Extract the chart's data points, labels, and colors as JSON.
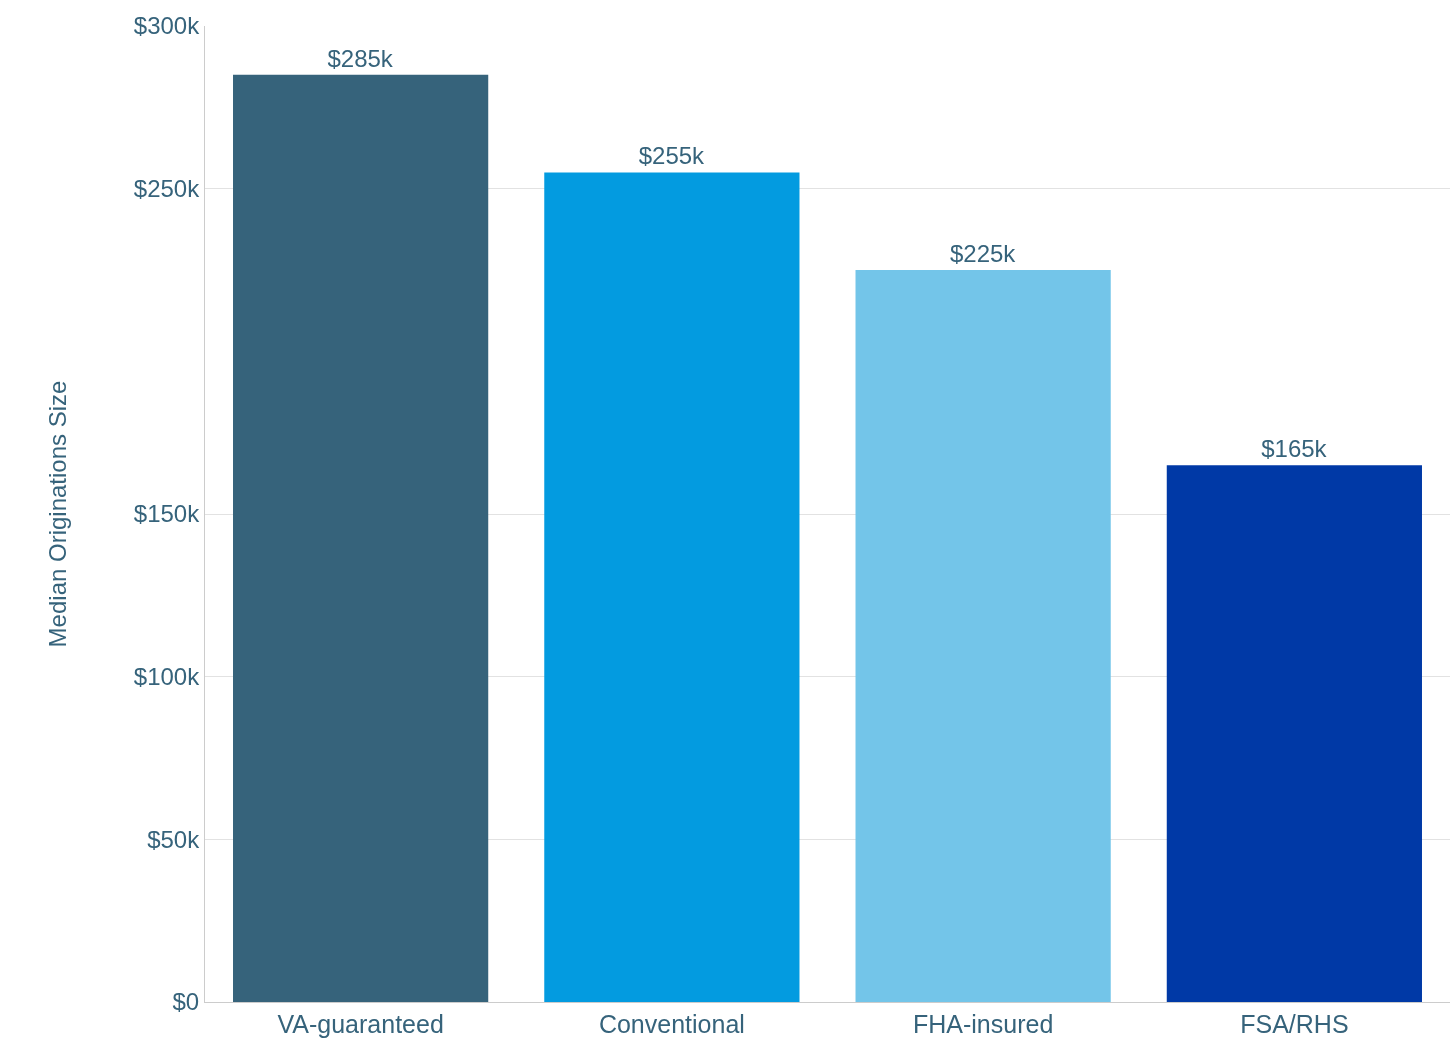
{
  "chart_data": {
    "type": "bar",
    "ylabel": "Median Originations Size",
    "categories": [
      "VA-guaranteed",
      "Conventional",
      "FHA-insured",
      "FSA/RHS"
    ],
    "values": [
      285,
      255,
      225,
      165
    ],
    "colors": [
      "#36637b",
      "#039be0",
      "#73c5e9",
      "#0039a6"
    ],
    "value_labels": [
      "$285k",
      "$255k",
      "$225k",
      "$165k"
    ],
    "ylim": [
      0,
      300
    ],
    "yticks": [
      {
        "value": 0,
        "label": "$0"
      },
      {
        "value": 50,
        "label": "$50k"
      },
      {
        "value": 100,
        "label": "$100k"
      },
      {
        "value": 150,
        "label": "$150k"
      },
      {
        "value": 250,
        "label": "$250k"
      },
      {
        "value": 300,
        "label": "$300k"
      }
    ],
    "grid": "y",
    "legend": false
  }
}
